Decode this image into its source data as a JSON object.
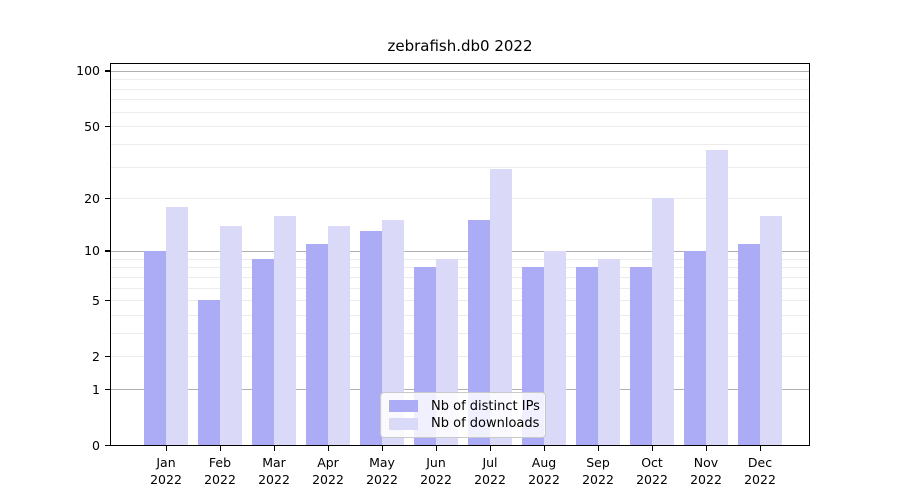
{
  "chart_data": {
    "type": "bar",
    "title": "zebrafish.db0 2022",
    "categories": [
      "Jan",
      "Feb",
      "Mar",
      "Apr",
      "May",
      "Jun",
      "Jul",
      "Aug",
      "Sep",
      "Oct",
      "Nov",
      "Dec"
    ],
    "x_year_label": "2022",
    "series": [
      {
        "name": "Nb of distinct IPs",
        "color": "#acacf6",
        "values": [
          10,
          5,
          9,
          11,
          13,
          8,
          15,
          8,
          8,
          8,
          10,
          11
        ]
      },
      {
        "name": "Nb of downloads",
        "color": "#dadaf8",
        "values": [
          18,
          14,
          16,
          14,
          15,
          9,
          29,
          10,
          9,
          20,
          37,
          16
        ]
      }
    ],
    "y_axis": {
      "scale": "log10(value+1)",
      "range": [
        0,
        100
      ],
      "tick_labels": [
        "100",
        "50",
        "20",
        "10",
        "5",
        "2",
        "1",
        "0"
      ],
      "tick_values": [
        100,
        50,
        20,
        10,
        5,
        2,
        1,
        0
      ],
      "major_gridlines": [
        100,
        10,
        1
      ],
      "minor_gridlines": [
        90,
        80,
        70,
        60,
        50,
        40,
        30,
        20,
        9,
        8,
        7,
        6,
        5,
        4,
        3,
        2
      ]
    },
    "legend": {
      "position": "inside-bottom-center"
    },
    "grid": true
  },
  "colors": {
    "series_ips": "#acacf6",
    "series_downloads": "#dadaf8",
    "major_gridline": "#b0b0b0",
    "minor_gridline": "#ececec",
    "axis": "#000000",
    "text": "#000000",
    "legend_border": "#c9c9c9",
    "legend_bg": "rgba(255,255,255,0.82)",
    "background": "#ffffff"
  }
}
